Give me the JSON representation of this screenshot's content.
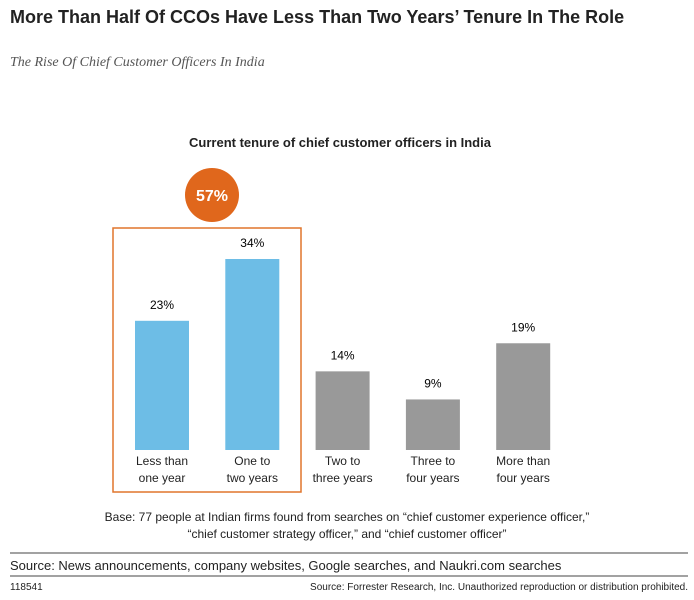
{
  "chart_data": {
    "type": "bar",
    "title": "More Than Half Of CCOs Have Less Than Two Years’ Tenure In The Role",
    "subtitle": "The Rise Of Chief Customer Officers In India",
    "chart_title": "Current tenure of chief customer officers in India",
    "categories": [
      "Less than\none year",
      "One to\ntwo years",
      "Two to\nthree years",
      "Three to\nfour years",
      "More than\nfour years"
    ],
    "values": [
      23,
      34,
      14,
      9,
      19
    ],
    "value_labels": [
      "23%",
      "34%",
      "14%",
      "9%",
      "19%"
    ],
    "colors": [
      "#6dbde6",
      "#6dbde6",
      "#999999",
      "#999999",
      "#999999"
    ],
    "annotation": {
      "value": 57,
      "label": "57%"
    },
    "base_note": "Base: 77 people at Indian firms found from searches on “chief customer experience officer,”\n“chief customer strategy officer,” and “chief customer officer”",
    "source": "Source: News announcements, company websites, Google searches, and Naukri.com searches",
    "footer_id": "118541",
    "footer_source": "Source: Forrester Research, Inc. Unauthorized reproduction or distribution prohibited."
  }
}
